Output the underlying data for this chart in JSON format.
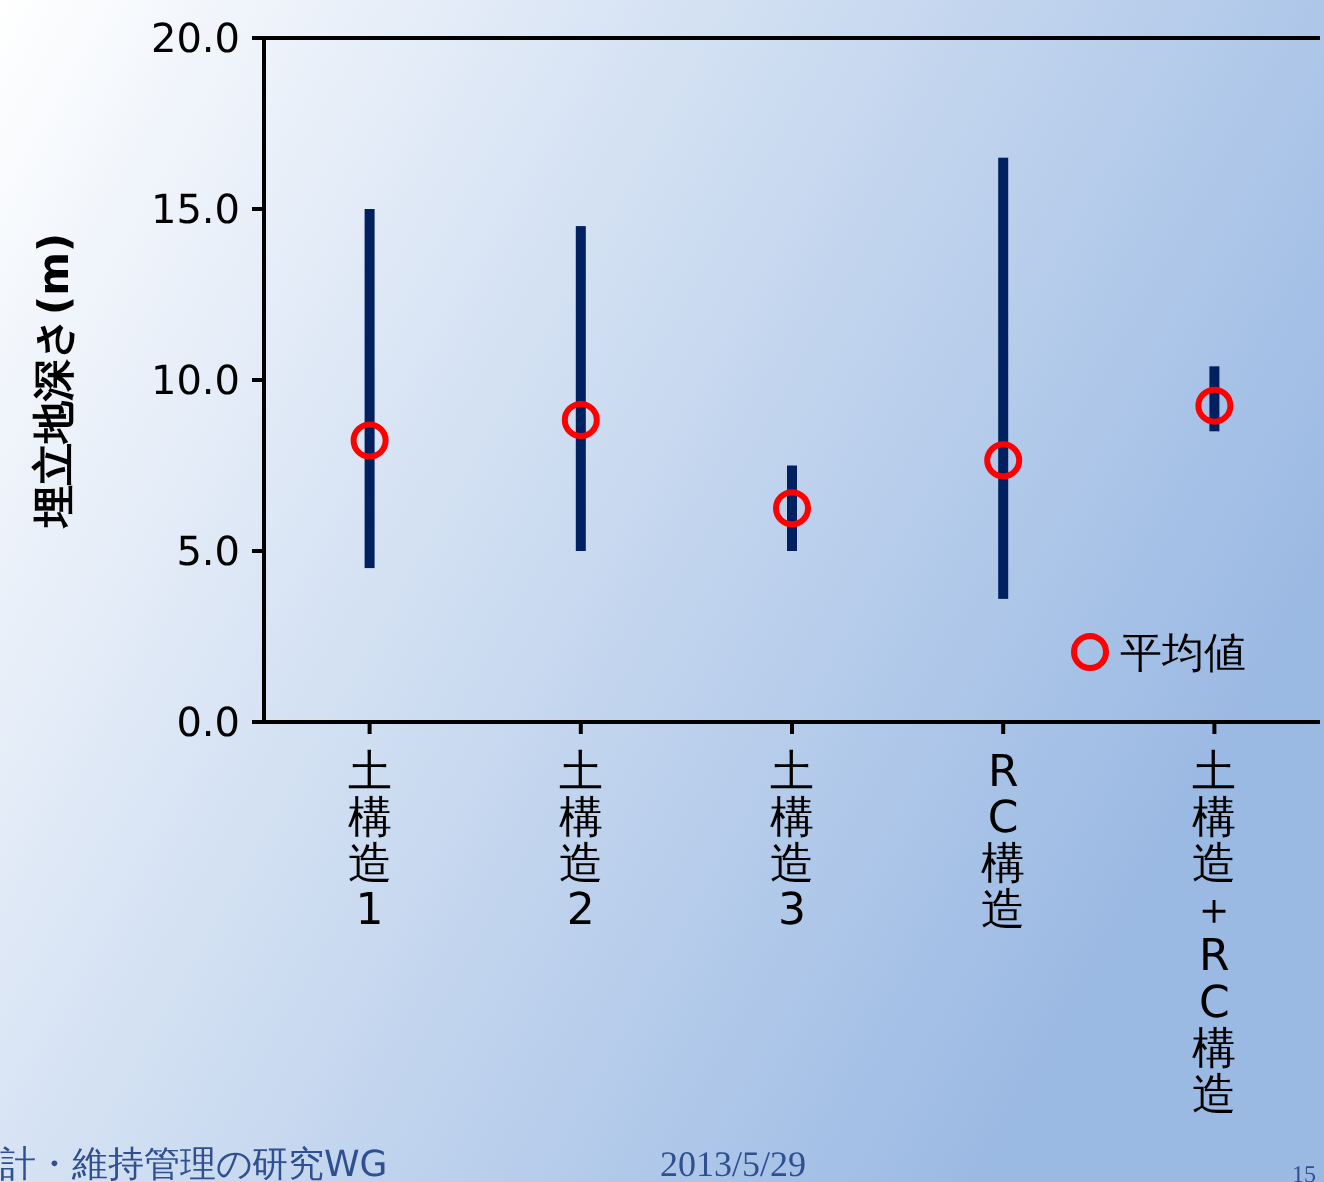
{
  "chart_data": {
    "type": "bar",
    "ylabel": "埋立地深さ(m)",
    "categories": [
      "土構造1",
      "土構造2",
      "土構造3",
      "RC構造",
      "土構造＋RC構造"
    ],
    "ylim": [
      0,
      20
    ],
    "yticks": [
      {
        "value": 0,
        "label": "0.0"
      },
      {
        "value": 5,
        "label": "5.0"
      },
      {
        "value": 10,
        "label": "10.0"
      },
      {
        "value": 15,
        "label": "15.0"
      },
      {
        "value": 20,
        "label": "20.0"
      }
    ],
    "legend": "bottom right",
    "series": [
      {
        "color": "#002060",
        "base": [
          4.5,
          5.0,
          5.0,
          3.6,
          8.5
        ],
        "values": [
          10.5,
          9.5,
          2.5,
          12.9,
          1.9
        ]
      },
      {
        "type": "scatter",
        "name": "平均値",
        "color": "#ff0000",
        "marker": "circle",
        "values": [
          8.23,
          8.83,
          6.25,
          7.65,
          9.25
        ]
      }
    ],
    "annotations": [
      "計・維持管理の研究WG",
      "2013/5/29",
      "15"
    ]
  }
}
